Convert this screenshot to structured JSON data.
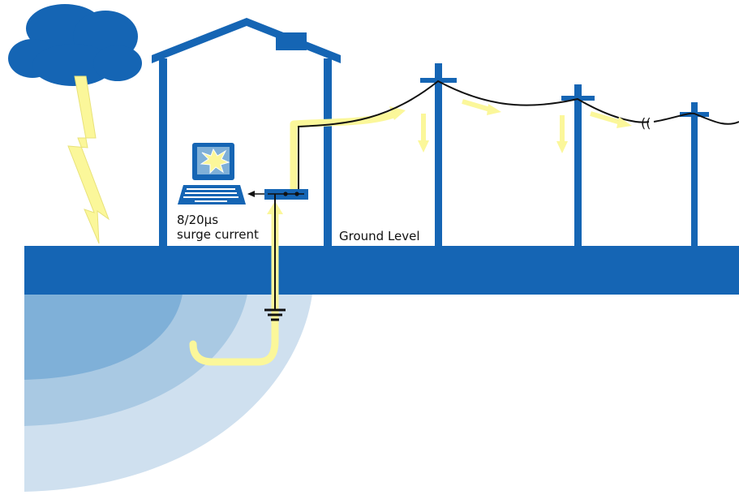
{
  "labels": {
    "surge_line1": "8/20µs",
    "surge_line2": "surge current",
    "ground_level": "Ground Level"
  },
  "colors": {
    "structure_blue": "#1565b4",
    "surge_yellow": "#fbf79a",
    "lightning_yellow": "#fbf79a",
    "earth_ring_outer": "#cfe0ef",
    "earth_ring_mid": "#a9c9e3",
    "earth_ring_inner": "#7fb0d8",
    "wire": "#111111"
  },
  "icons": {
    "storm_cloud": "cloud-icon",
    "lightning": "lightning-bolt-icon",
    "computer": "computer-icon",
    "ground_symbol": "ground-symbol-icon"
  }
}
